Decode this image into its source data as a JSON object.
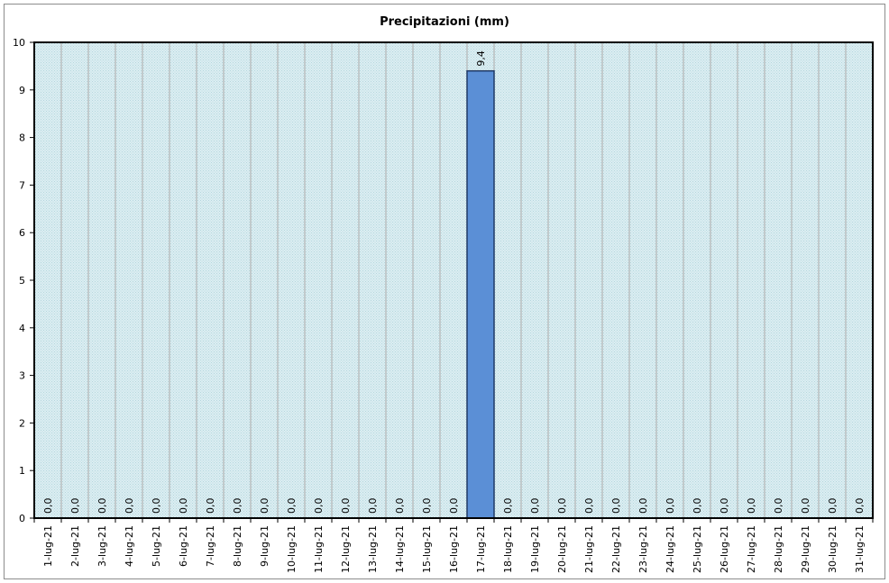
{
  "chart_data": {
    "type": "bar",
    "title": "Precipitazioni (mm)",
    "xlabel": "",
    "ylabel": "",
    "ylim": [
      0,
      10
    ],
    "yticks": [
      0,
      1,
      2,
      3,
      4,
      5,
      6,
      7,
      8,
      9,
      10
    ],
    "grid": "vertical",
    "categories": [
      "1-lug-21",
      "2-lug-21",
      "3-lug-21",
      "4-lug-21",
      "5-lug-21",
      "6-lug-21",
      "7-lug-21",
      "8-lug-21",
      "9-lug-21",
      "10-lug-21",
      "11-lug-21",
      "12-lug-21",
      "13-lug-21",
      "14-lug-21",
      "15-lug-21",
      "16-lug-21",
      "17-lug-21",
      "18-lug-21",
      "19-lug-21",
      "20-lug-21",
      "21-lug-21",
      "22-lug-21",
      "23-lug-21",
      "24-lug-21",
      "25-lug-21",
      "26-lug-21",
      "27-lug-21",
      "28-lug-21",
      "29-lug-21",
      "30-lug-21",
      "31-lug-21"
    ],
    "values": [
      0,
      0,
      0,
      0,
      0,
      0,
      0,
      0,
      0,
      0,
      0,
      0,
      0,
      0,
      0,
      0,
      9.4,
      0,
      0,
      0,
      0,
      0,
      0,
      0,
      0,
      0,
      0,
      0,
      0,
      0,
      0
    ],
    "data_labels": [
      "0,0",
      "0,0",
      "0,0",
      "0,0",
      "0,0",
      "0,0",
      "0,0",
      "0,0",
      "0,0",
      "0,0",
      "0,0",
      "0,0",
      "0,0",
      "0,0",
      "0,0",
      "0,0",
      "9,4",
      "0,0",
      "0,0",
      "0,0",
      "0,0",
      "0,0",
      "0,0",
      "0,0",
      "0,0",
      "0,0",
      "0,0",
      "0,0",
      "0,0",
      "0,0",
      "0,0"
    ],
    "colors": {
      "bar_fill": "#5b8fd6",
      "bar_stroke": "#1f3864",
      "plot_bg": "#dceef2",
      "plot_dot": "#b5d7de",
      "grid": "#a6a6a6",
      "border": "#000000"
    }
  }
}
